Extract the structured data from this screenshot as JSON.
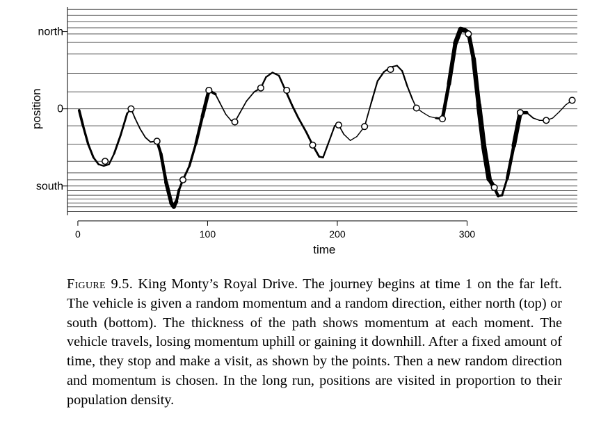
{
  "chart_data": {
    "type": "line",
    "title": "",
    "xlabel": "time",
    "ylabel": "position",
    "xlim": [
      -8,
      385
    ],
    "ylim": [
      -1.38,
      1.32
    ],
    "xticks": [
      0,
      100,
      200,
      300
    ],
    "xtick_labels": [
      "0",
      "100",
      "200",
      "300"
    ],
    "yticks": [
      1.0,
      0.0,
      -1.0
    ],
    "ytick_labels": [
      "north",
      "0",
      "south"
    ],
    "path": {
      "x": [
        1,
        4,
        8,
        12,
        16,
        20,
        24,
        28,
        33,
        38,
        41,
        44,
        48,
        52,
        56,
        60,
        61,
        64,
        68,
        72,
        74,
        76,
        78,
        81,
        86,
        91,
        96,
        101,
        106,
        110,
        114,
        118,
        121,
        125,
        130,
        136,
        141,
        145,
        150,
        155,
        160,
        165,
        170,
        176,
        181,
        186,
        189,
        193,
        198,
        201,
        205,
        210,
        215,
        221,
        226,
        231,
        236,
        241,
        246,
        250,
        254,
        258,
        261,
        266,
        271,
        276,
        281,
        286,
        291,
        295,
        298,
        301,
        305,
        309,
        313,
        317,
        321,
        324,
        327,
        331,
        336,
        341,
        346,
        351,
        356,
        361,
        366,
        371,
        376,
        381
      ],
      "y": [
        -0.02,
        -0.22,
        -0.46,
        -0.63,
        -0.72,
        -0.74,
        -0.72,
        -0.58,
        -0.34,
        -0.06,
        0.0,
        -0.12,
        -0.26,
        -0.37,
        -0.43,
        -0.42,
        -0.42,
        -0.58,
        -0.95,
        -1.22,
        -1.27,
        -1.2,
        -1.05,
        -0.92,
        -0.74,
        -0.45,
        -0.1,
        0.24,
        0.19,
        0.06,
        -0.07,
        -0.15,
        -0.17,
        -0.05,
        0.1,
        0.22,
        0.27,
        0.41,
        0.47,
        0.43,
        0.24,
        0.05,
        -0.12,
        -0.3,
        -0.47,
        -0.62,
        -0.63,
        -0.45,
        -0.22,
        -0.21,
        -0.33,
        -0.41,
        -0.36,
        -0.23,
        0.07,
        0.36,
        0.48,
        0.54,
        0.56,
        0.49,
        0.29,
        0.12,
        0.01,
        -0.05,
        -0.1,
        -0.12,
        -0.13,
        0.32,
        0.85,
        1.03,
        1.02,
        0.99,
        0.65,
        0.05,
        -0.5,
        -0.91,
        -1.02,
        -1.13,
        -1.12,
        -0.9,
        -0.48,
        -0.05,
        -0.05,
        -0.12,
        -0.15,
        -0.15,
        -0.12,
        -0.04,
        0.05,
        0.11
      ],
      "w": [
        4,
        3.5,
        3.2,
        2.8,
        2.5,
        2.2,
        2.2,
        2.6,
        3.2,
        2.4,
        1.8,
        1.8,
        1.8,
        1.8,
        1.9,
        2.2,
        3.8,
        4.3,
        5,
        6,
        6.2,
        4.5,
        3.5,
        2.8,
        3,
        3.8,
        4.8,
        5.5,
        2,
        1.7,
        1.6,
        1.5,
        1.8,
        1.7,
        1.7,
        1.8,
        2.4,
        2.4,
        2.2,
        2.4,
        2.8,
        2.8,
        2.8,
        2.8,
        2.9,
        2.8,
        2.4,
        2.2,
        2.1,
        1.8,
        1.5,
        1.4,
        1.4,
        1.6,
        2,
        2.4,
        2.2,
        2,
        2,
        2.3,
        2.4,
        1.8,
        1.5,
        1.4,
        1.3,
        1.3,
        4.6,
        5.5,
        6.5,
        7.3,
        7,
        5.6,
        6.2,
        7,
        7.8,
        7.2,
        5,
        3.5,
        2.5,
        3.5,
        5.8,
        7,
        2.2,
        1.7,
        1.5,
        1.4,
        1.4,
        1.4,
        1.4,
        1.4
      ]
    },
    "points": {
      "x": [
        21,
        41,
        61,
        81,
        101,
        121,
        141,
        161,
        181,
        201,
        221,
        241,
        261,
        281,
        301,
        321,
        341,
        361,
        381
      ],
      "y": [
        -0.68,
        0.0,
        -0.42,
        -0.92,
        0.24,
        -0.17,
        0.27,
        0.24,
        -0.47,
        -0.21,
        -0.23,
        0.51,
        0.01,
        -0.13,
        0.97,
        -1.02,
        -0.05,
        -0.15,
        0.11
      ]
    },
    "hlines": [
      1.29,
      1.21,
      1.13,
      1.05,
      0.97,
      0.86,
      0.71,
      0.46,
      0.22,
      0.0,
      -0.22,
      -0.46,
      -0.68,
      -0.83,
      -0.92,
      -1.0,
      -1.06,
      -1.12,
      -1.17,
      -1.22,
      -1.27,
      -1.33
    ]
  },
  "caption": {
    "lead": "Figure 9.5.",
    "text": " King Monty’s Royal Drive.  The journey begins at time 1 on the far left. The vehicle is given a random momentum and a random direction, either north (top) or south (bottom). The thickness of the path shows momentum at each moment. The vehicle travels, losing momentum uphill or gaining it downhill.  After a fixed amount of time, they stop and make a visit, as shown by the points.  Then a new random direction and momentum is chosen.  In the long run, positions are visited in proportion to their population density."
  }
}
